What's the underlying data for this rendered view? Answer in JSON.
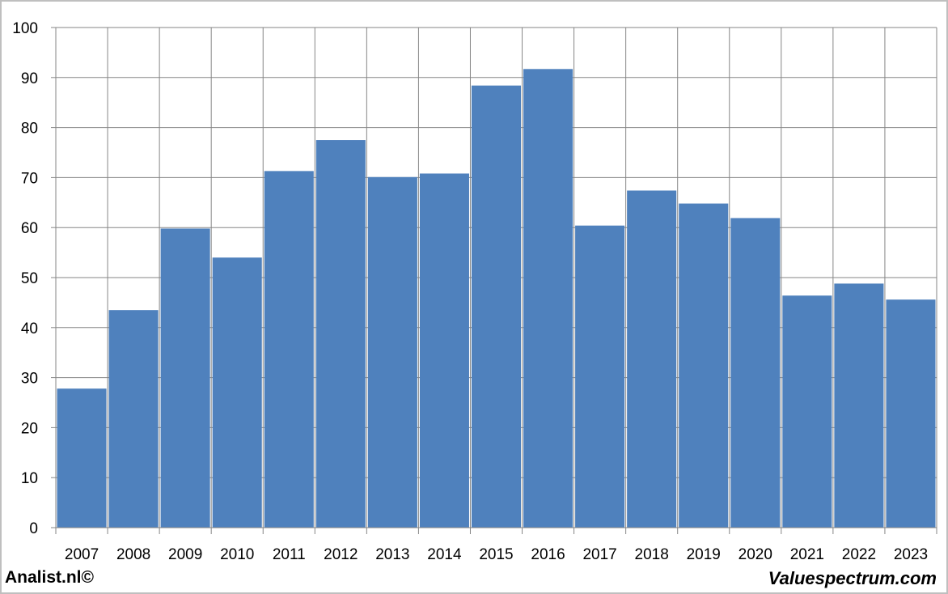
{
  "chart_data": {
    "type": "bar",
    "categories": [
      "2007",
      "2008",
      "2009",
      "2010",
      "2011",
      "2012",
      "2013",
      "2014",
      "2015",
      "2016",
      "2017",
      "2018",
      "2019",
      "2020",
      "2021",
      "2022",
      "2023"
    ],
    "values": [
      27.8,
      43.5,
      59.8,
      54.0,
      71.3,
      77.5,
      70.1,
      70.8,
      88.4,
      91.7,
      60.4,
      67.4,
      64.8,
      61.9,
      46.4,
      48.8,
      45.6
    ],
    "ylim": [
      0,
      100
    ],
    "yticks": [
      0,
      10,
      20,
      30,
      40,
      50,
      60,
      70,
      80,
      90,
      100
    ],
    "grid": true,
    "bar_color": "#4f81bd"
  },
  "footer": {
    "left": "Analist.nl©",
    "right": "Valuespectrum.com"
  }
}
